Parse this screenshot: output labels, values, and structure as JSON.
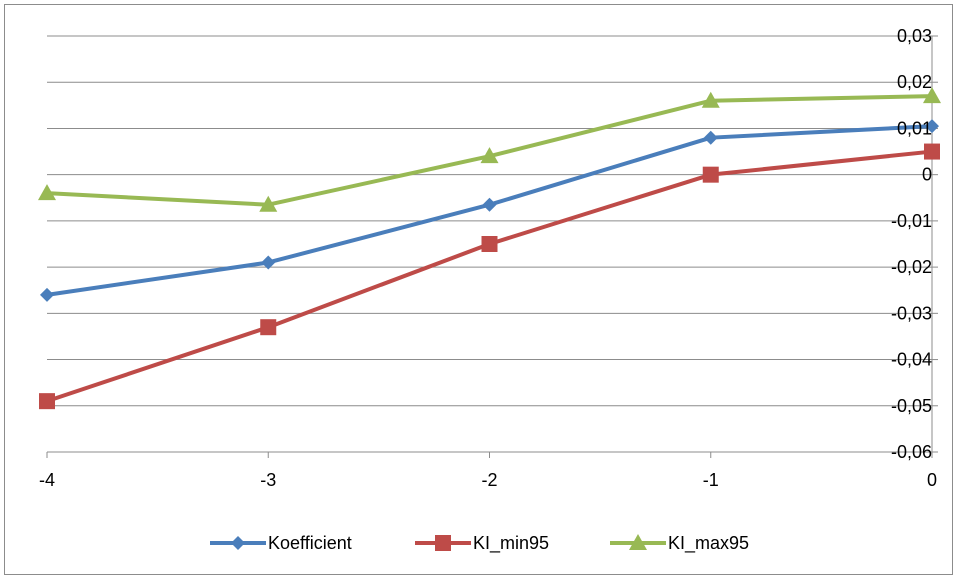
{
  "chart_data": {
    "type": "line",
    "title": "",
    "xlabel": "",
    "ylabel": "",
    "x": [
      -4,
      -3,
      -2,
      -1,
      0
    ],
    "x_tick_labels": [
      "-4",
      "-3",
      "-2",
      "-1",
      "0"
    ],
    "xlim": [
      -4,
      0
    ],
    "ylim": [
      -0.06,
      0.03
    ],
    "y_ticks": [
      0.03,
      0.02,
      0.01,
      0,
      -0.01,
      -0.02,
      -0.03,
      -0.04,
      -0.05,
      -0.06
    ],
    "y_tick_labels": [
      "0,03",
      "0,02",
      "0,01",
      "0",
      "-0,01",
      "-0,02",
      "-0,03",
      "-0,04",
      "-0,05",
      "-0,06"
    ],
    "y_axis_side": "right",
    "grid": true,
    "legend_position": "bottom",
    "series": [
      {
        "name": "Koefficient",
        "color": "#4a7ebb",
        "marker": "diamond",
        "values": [
          -0.026,
          -0.019,
          -0.0065,
          0.008,
          0.0105
        ]
      },
      {
        "name": "KI_min95",
        "color": "#be4b48",
        "marker": "square",
        "values": [
          -0.049,
          -0.033,
          -0.015,
          0.0,
          0.005
        ]
      },
      {
        "name": "KI_max95",
        "color": "#98b954",
        "marker": "triangle",
        "values": [
          -0.004,
          -0.0065,
          0.004,
          0.016,
          0.017
        ]
      }
    ]
  }
}
